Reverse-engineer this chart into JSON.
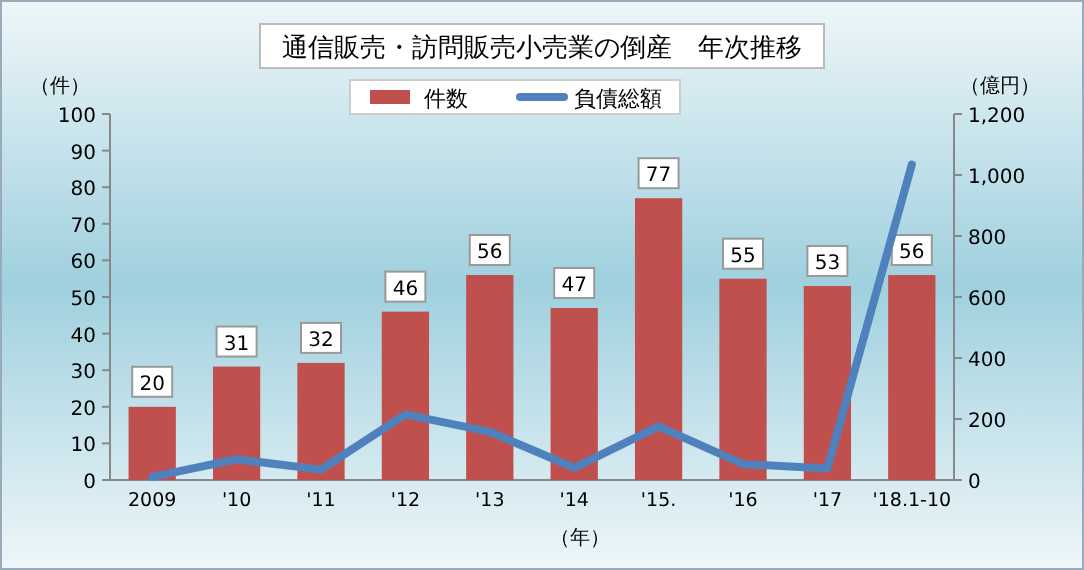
{
  "chart_data": {
    "type": "bar",
    "title": "通信販売・訪問販売小売業の倒産　年次推移",
    "xlabel": "（年）",
    "ylabel": "（件）",
    "y2label": "（億円）",
    "categories": [
      "2009",
      "'10",
      "'11",
      "'12",
      "'13",
      "'14",
      "'15.",
      "'16",
      "'17",
      "'18.1-10"
    ],
    "series": [
      {
        "name": "件数",
        "color": "#c0504d",
        "values": [
          20,
          31,
          32,
          46,
          56,
          47,
          77,
          55,
          53,
          56
        ],
        "value_labels": [
          "20",
          "31",
          "32",
          "46",
          "56",
          "47",
          "77",
          "55",
          "53",
          "56"
        ]
      },
      {
        "name": "負債総額",
        "type": "line",
        "axis": "y2",
        "color": "#4f81bd",
        "values": [
          10,
          68,
          34,
          215,
          158,
          40,
          176,
          52,
          38,
          1034
        ]
      }
    ],
    "ylim": [
      0,
      100
    ],
    "yticks": [
      0,
      10,
      20,
      30,
      40,
      50,
      60,
      70,
      80,
      90,
      100
    ],
    "y2lim": [
      0,
      1200
    ],
    "y2ticks": [
      0,
      200,
      400,
      600,
      800,
      {
        "value": 1000,
        "label": "1,000"
      },
      {
        "value": 1200,
        "label": "1,200"
      }
    ],
    "legend": "top"
  }
}
